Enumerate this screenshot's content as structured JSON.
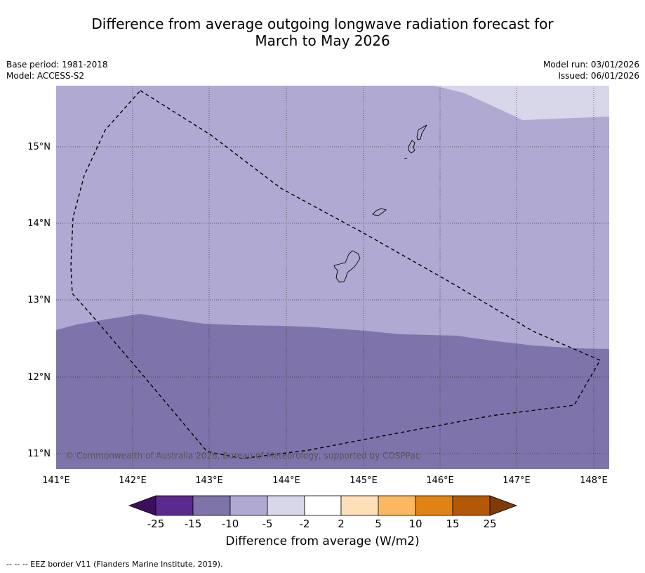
{
  "title_line1": "Difference from average outgoing longwave radiation forecast for",
  "title_line2": "March to May 2026",
  "meta": {
    "base_period": "Base period: 1981-2018",
    "model": "Model: ACCESS-S2",
    "model_run": "Model run: 03/01/2026",
    "issued": "Issued: 06/01/2026"
  },
  "map": {
    "lon_labels": [
      "141°E",
      "142°E",
      "143°E",
      "144°E",
      "145°E",
      "146°E",
      "147°E",
      "148°E"
    ],
    "lat_labels": [
      "15°N",
      "14°N",
      "13°N",
      "12°N",
      "11°N"
    ],
    "copyright": "© Commonwealth of Australia 2026, Bureau of Meteorology, supported by COSPPac",
    "fill_colors": {
      "minus10_to_minus5": "#b0a9d1",
      "minus15_to_minus10": "#7f73ab",
      "minus5_to_minus2": "#d8d7ea"
    }
  },
  "colorbar": {
    "title": "Difference from average (W/m2)",
    "tick_labels": [
      "-25",
      "-15",
      "-10",
      "-5",
      "-2",
      "2",
      "5",
      "10",
      "15",
      "25"
    ],
    "colors": [
      "#3b0f5e",
      "#5b2a8f",
      "#7f73ab",
      "#b0a9d1",
      "#d8d7ea",
      "#ffffff",
      "#fde0b8",
      "#fbb861",
      "#e08214",
      "#b35806",
      "#7f3b08"
    ]
  },
  "footer": "--  --  -- EEZ border V11 (Flanders Marine Institute, 2019)."
}
